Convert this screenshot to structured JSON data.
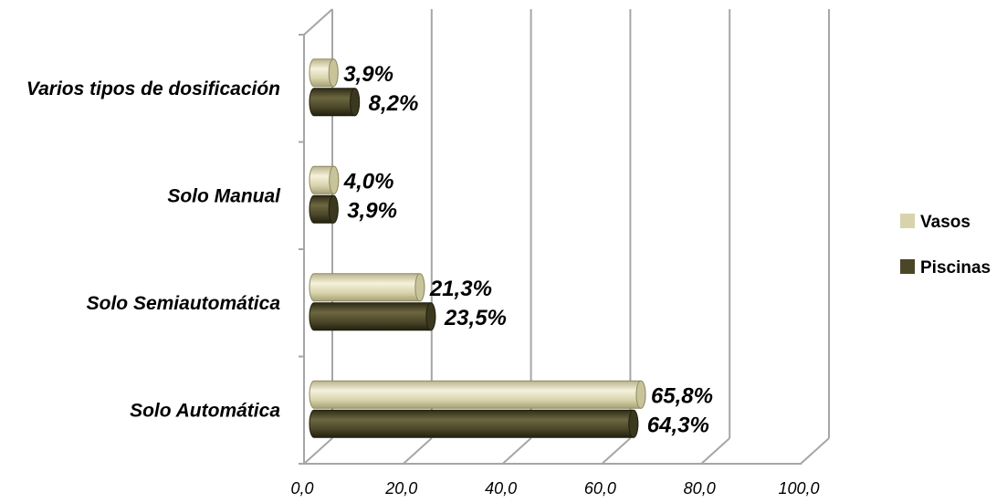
{
  "chart_data": {
    "type": "bar",
    "orientation": "horizontal",
    "style": "3d-cylinder",
    "categories": [
      "Solo Automática",
      "Solo Semiautomática",
      "Solo Manual",
      "Varios tipos de dosificación"
    ],
    "series": [
      {
        "name": "Vasos",
        "values": [
          65.8,
          21.3,
          4.0,
          3.9
        ],
        "labels": [
          "65,8%",
          "21,3%",
          "4,0%",
          "3,9%"
        ],
        "color": "#d8d3ab"
      },
      {
        "name": "Piscinas",
        "values": [
          64.3,
          23.5,
          3.9,
          8.2
        ],
        "labels": [
          "64,3%",
          "23,5%",
          "3,9%",
          "8,2%"
        ],
        "color": "#4a4628"
      }
    ],
    "xticks": [
      "0,0",
      "20,0",
      "40,0",
      "60,0",
      "80,0",
      "100,0"
    ],
    "xlim": [
      0,
      100
    ],
    "grid": true,
    "legend_position": "right"
  }
}
